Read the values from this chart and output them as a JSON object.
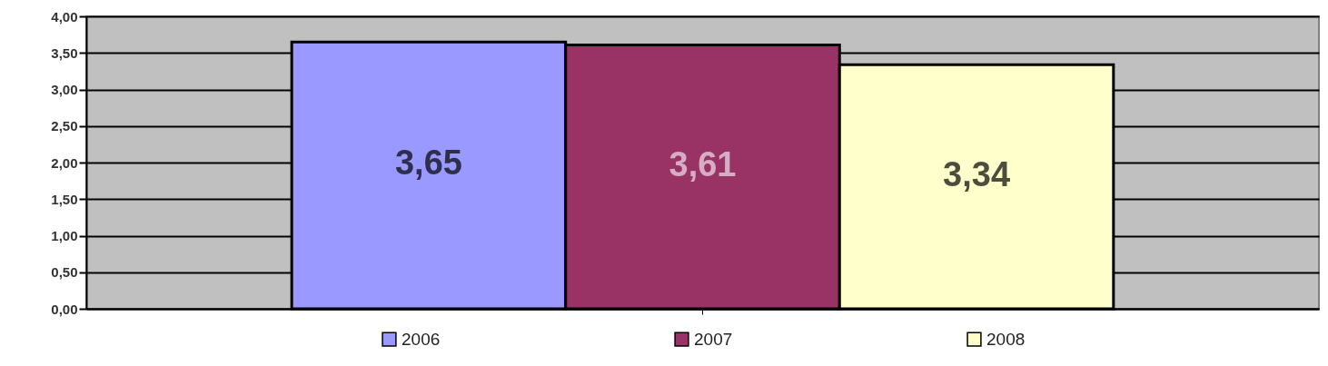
{
  "chart_data": {
    "type": "bar",
    "categories": [
      null
    ],
    "series": [
      {
        "name": "2006",
        "color": "#9999ff",
        "values": [
          3.65
        ],
        "value_labels": [
          "3,65"
        ]
      },
      {
        "name": "2007",
        "color": "#993366",
        "values": [
          3.61
        ],
        "value_labels": [
          "3,61"
        ]
      },
      {
        "name": "2008",
        "color": "#ffffcc",
        "values": [
          3.34
        ],
        "value_labels": [
          "3,34"
        ]
      }
    ],
    "ylim": [
      0,
      4
    ],
    "yticks": [
      {
        "value": 0,
        "label": "0,00"
      },
      {
        "value": 0.5,
        "label": "0,50"
      },
      {
        "value": 1,
        "label": "1,00"
      },
      {
        "value": 1.5,
        "label": "1,50"
      },
      {
        "value": 2,
        "label": "2,00"
      },
      {
        "value": 2.5,
        "label": "2,50"
      },
      {
        "value": 3,
        "label": "3,00"
      },
      {
        "value": 3.5,
        "label": "3,50"
      },
      {
        "value": 4,
        "label": "4,00"
      }
    ],
    "grid": true,
    "legend": "bottom"
  }
}
